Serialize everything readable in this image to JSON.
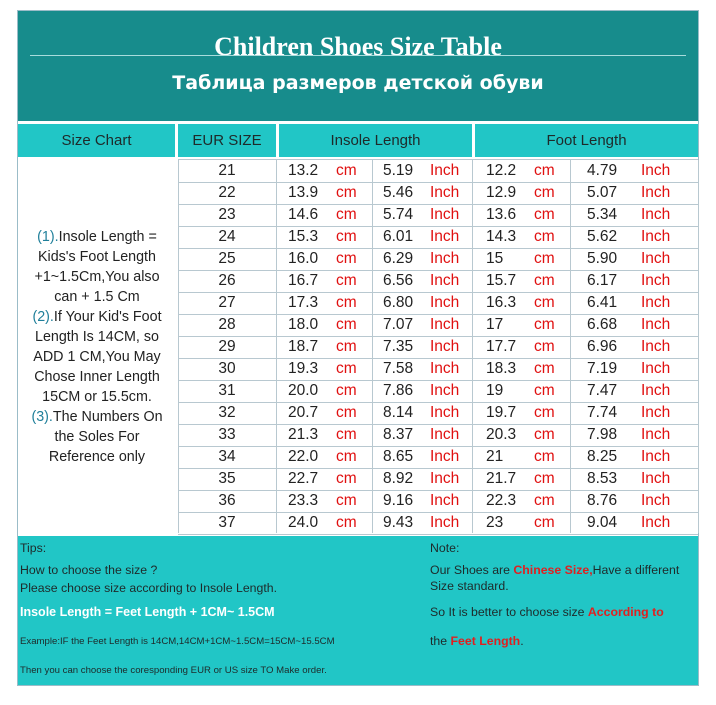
{
  "title": "Children Shoes Size Table",
  "subtitle": "Таблица размеров детской обуви",
  "colors": {
    "header_bg": "#178c8c",
    "teal": "#21c6c6",
    "red": "#e01010"
  },
  "table": {
    "headers": {
      "size_chart": "Size Chart",
      "eur_size": "EUR SIZE",
      "insole_length": "Insole Length",
      "foot_length": "Foot Length"
    },
    "cm_unit": "cm",
    "inch_unit": "Inch",
    "rows": [
      {
        "eur": "21",
        "insole_cm": "13.2",
        "insole_inch": "5.19",
        "foot_cm": "12.2",
        "foot_inch": "4.79"
      },
      {
        "eur": "22",
        "insole_cm": "13.9",
        "insole_inch": "5.46",
        "foot_cm": "12.9",
        "foot_inch": "5.07"
      },
      {
        "eur": "23",
        "insole_cm": "14.6",
        "insole_inch": "5.74",
        "foot_cm": "13.6",
        "foot_inch": "5.34"
      },
      {
        "eur": "24",
        "insole_cm": "15.3",
        "insole_inch": "6.01",
        "foot_cm": "14.3",
        "foot_inch": "5.62"
      },
      {
        "eur": "25",
        "insole_cm": "16.0",
        "insole_inch": "6.29",
        "foot_cm": "15",
        "foot_inch": "5.90"
      },
      {
        "eur": "26",
        "insole_cm": "16.7",
        "insole_inch": "6.56",
        "foot_cm": "15.7",
        "foot_inch": "6.17"
      },
      {
        "eur": "27",
        "insole_cm": "17.3",
        "insole_inch": "6.80",
        "foot_cm": "16.3",
        "foot_inch": "6.41"
      },
      {
        "eur": "28",
        "insole_cm": "18.0",
        "insole_inch": "7.07",
        "foot_cm": "17",
        "foot_inch": "6.68"
      },
      {
        "eur": "29",
        "insole_cm": "18.7",
        "insole_inch": "7.35",
        "foot_cm": "17.7",
        "foot_inch": "6.96"
      },
      {
        "eur": "30",
        "insole_cm": "19.3",
        "insole_inch": "7.58",
        "foot_cm": "18.3",
        "foot_inch": "7.19"
      },
      {
        "eur": "31",
        "insole_cm": "20.0",
        "insole_inch": "7.86",
        "foot_cm": "19",
        "foot_inch": "7.47"
      },
      {
        "eur": "32",
        "insole_cm": "20.7",
        "insole_inch": "8.14",
        "foot_cm": "19.7",
        "foot_inch": "7.74"
      },
      {
        "eur": "33",
        "insole_cm": "21.3",
        "insole_inch": "8.37",
        "foot_cm": "20.3",
        "foot_inch": "7.98"
      },
      {
        "eur": "34",
        "insole_cm": "22.0",
        "insole_inch": "8.65",
        "foot_cm": "21",
        "foot_inch": "8.25"
      },
      {
        "eur": "35",
        "insole_cm": "22.7",
        "insole_inch": "8.92",
        "foot_cm": "21.7",
        "foot_inch": "8.53"
      },
      {
        "eur": "36",
        "insole_cm": "23.3",
        "insole_inch": "9.16",
        "foot_cm": "22.3",
        "foot_inch": "8.76"
      },
      {
        "eur": "37",
        "insole_cm": "24.0",
        "insole_inch": "9.43",
        "foot_cm": "23",
        "foot_inch": "9.04"
      }
    ]
  },
  "notes_left": [
    {
      "num": "(1).",
      "text": "Insole Length = Kids's Foot Length +1~1.5Cm,You also can + 1.5 Cm"
    },
    {
      "num": "(2).",
      "text": "If Your Kid's Foot Length Is 14CM,  so ADD 1 CM,You May Chose Inner Length 15CM or 15.5cm."
    },
    {
      "num": "(3).",
      "text": "The Numbers On the Soles For Reference only"
    }
  ],
  "tips": {
    "heading": "Tips:",
    "line1": "How to choose the size ?",
    "line2": "Please choose size according to Insole Length.",
    "formula": "Insole Length = Feet Length + 1CM~ 1.5CM",
    "example": "Example:IF the Feet Length is 14CM,14CM+1CM~1.5CM=15CM~15.5CM",
    "last": "Then you can choose the coresponding EUR or US size TO Make order."
  },
  "note": {
    "heading": "Note:",
    "p1_before": "Our Shoes are ",
    "p1_highlight": "Chinese Size,",
    "p1_after": "Have a different Size standard.",
    "p2_before": "So It is better to choose size ",
    "p2_highlight1": "According to",
    "p3_before": "the ",
    "p3_highlight": "Feet Length",
    "p3_after": "."
  }
}
